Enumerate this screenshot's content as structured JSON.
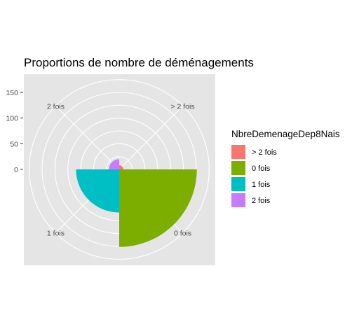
{
  "chart_data": {
    "type": "polar-bar",
    "title": "Proportions de nombre de déménagements",
    "categories": [
      "> 2 fois",
      "0 fois",
      "1 fois",
      "2 fois"
    ],
    "values": [
      8,
      151,
      84,
      20
    ],
    "colors": [
      "#F8766D",
      "#7CAE00",
      "#00BFC4",
      "#C77CFF"
    ],
    "radial_ticks": [
      0,
      50,
      100,
      150
    ],
    "radial_range": [
      0,
      150
    ],
    "grid": true,
    "legend": {
      "title": "NbreDemenageDep8Nais",
      "position": "right",
      "entries": [
        "> 2 fois",
        "0 fois",
        "1 fois",
        "2 fois"
      ]
    }
  }
}
